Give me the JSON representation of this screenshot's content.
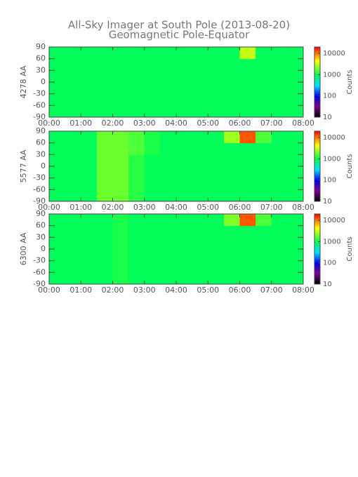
{
  "title": "All-Sky Imager at South Pole (2013-08-20)",
  "subtitle": "Geomagnetic Pole-Equator",
  "chart_data": [
    {
      "type": "heatmap",
      "ylabel": "4278 AA",
      "xbins": [
        0,
        0.5,
        1,
        1.5,
        2,
        2.5,
        3,
        3.5,
        4,
        4.5,
        5,
        5.5,
        6,
        6.5,
        7,
        7.5,
        8
      ],
      "ybins": [
        -90,
        -60,
        -30,
        0,
        30,
        60,
        90
      ],
      "z": [
        [
          900,
          900,
          900,
          900,
          900,
          900,
          900,
          900,
          900,
          900,
          900,
          900,
          900,
          900,
          900,
          900
        ],
        [
          900,
          900,
          900,
          900,
          900,
          900,
          900,
          900,
          900,
          900,
          900,
          900,
          900,
          900,
          900,
          900
        ],
        [
          900,
          900,
          900,
          900,
          900,
          900,
          900,
          900,
          900,
          900,
          900,
          900,
          900,
          900,
          900,
          900
        ],
        [
          900,
          900,
          900,
          900,
          900,
          900,
          900,
          900,
          900,
          900,
          900,
          900,
          900,
          900,
          900,
          900
        ],
        [
          900,
          900,
          900,
          900,
          900,
          900,
          900,
          900,
          900,
          900,
          900,
          900,
          900,
          900,
          900,
          900
        ],
        [
          900,
          900,
          900,
          900,
          900,
          900,
          900,
          900,
          900,
          900,
          900,
          900,
          3000,
          900,
          900,
          900
        ]
      ],
      "xlim": [
        0,
        8
      ],
      "xticks": [
        {
          "value": 0,
          "label": "00:00"
        },
        {
          "value": 1,
          "label": "01:00"
        },
        {
          "value": 2,
          "label": "02:00"
        },
        {
          "value": 3,
          "label": "03:00"
        },
        {
          "value": 4,
          "label": "04:00"
        },
        {
          "value": 5,
          "label": "05:00"
        },
        {
          "value": 6,
          "label": "06:00"
        },
        {
          "value": 7,
          "label": "07:00"
        },
        {
          "value": 8,
          "label": "08:00"
        }
      ],
      "ylim": [
        -90,
        90
      ],
      "yticks": [
        -90,
        -60,
        -30,
        0,
        30,
        60,
        90
      ],
      "zlim": [
        10,
        20000
      ],
      "zticks": [
        10,
        100,
        1000,
        10000
      ],
      "zscale": "log",
      "zlabel": "Counts"
    },
    {
      "type": "heatmap",
      "ylabel": "5577 AA",
      "xbins": [
        0,
        0.5,
        1,
        1.5,
        2,
        2.5,
        3,
        3.5,
        4,
        4.5,
        5,
        5.5,
        6,
        6.5,
        7,
        7.5,
        8
      ],
      "ybins": [
        -90,
        -60,
        -30,
        0,
        30,
        60,
        90
      ],
      "z": [
        [
          900,
          900,
          900,
          1800,
          1800,
          1200,
          900,
          900,
          900,
          900,
          900,
          900,
          900,
          900,
          900,
          900
        ],
        [
          900,
          900,
          900,
          1800,
          1800,
          1200,
          900,
          900,
          900,
          900,
          900,
          900,
          900,
          900,
          900,
          900
        ],
        [
          900,
          900,
          900,
          1800,
          1800,
          1200,
          900,
          900,
          900,
          900,
          900,
          900,
          900,
          900,
          900,
          900
        ],
        [
          900,
          900,
          900,
          1800,
          1800,
          1200,
          900,
          900,
          900,
          900,
          900,
          900,
          900,
          900,
          900,
          900
        ],
        [
          900,
          900,
          900,
          1800,
          1800,
          1500,
          1100,
          900,
          900,
          900,
          900,
          900,
          900,
          900,
          900,
          900
        ],
        [
          900,
          900,
          900,
          1800,
          1800,
          1500,
          1100,
          900,
          900,
          900,
          900,
          2500,
          12000,
          1500,
          900,
          900
        ]
      ],
      "xlim": [
        0,
        8
      ],
      "xticks": [
        {
          "value": 0,
          "label": "00:00"
        },
        {
          "value": 1,
          "label": "01:00"
        },
        {
          "value": 2,
          "label": "02:00"
        },
        {
          "value": 3,
          "label": "03:00"
        },
        {
          "value": 4,
          "label": "04:00"
        },
        {
          "value": 5,
          "label": "05:00"
        },
        {
          "value": 6,
          "label": "06:00"
        },
        {
          "value": 7,
          "label": "07:00"
        },
        {
          "value": 8,
          "label": "08:00"
        }
      ],
      "ylim": [
        -90,
        90
      ],
      "yticks": [
        -90,
        -60,
        -30,
        0,
        30,
        60,
        90
      ],
      "zlim": [
        10,
        20000
      ],
      "zticks": [
        10,
        100,
        1000,
        10000
      ],
      "zscale": "log",
      "zlabel": "Counts"
    },
    {
      "type": "heatmap",
      "ylabel": "6300 AA",
      "xbins": [
        0,
        0.5,
        1,
        1.5,
        2,
        2.5,
        3,
        3.5,
        4,
        4.5,
        5,
        5.5,
        6,
        6.5,
        7,
        7.5,
        8
      ],
      "ybins": [
        -90,
        -60,
        -30,
        0,
        30,
        60,
        90
      ],
      "z": [
        [
          900,
          900,
          900,
          900,
          1100,
          900,
          900,
          900,
          900,
          900,
          900,
          900,
          900,
          900,
          900,
          900
        ],
        [
          900,
          900,
          900,
          900,
          1100,
          900,
          900,
          900,
          900,
          900,
          900,
          900,
          900,
          900,
          900,
          900
        ],
        [
          900,
          900,
          900,
          900,
          1100,
          900,
          900,
          900,
          900,
          900,
          900,
          900,
          900,
          900,
          900,
          900
        ],
        [
          900,
          900,
          900,
          900,
          1100,
          900,
          900,
          900,
          900,
          900,
          900,
          900,
          900,
          900,
          900,
          900
        ],
        [
          900,
          900,
          900,
          900,
          1100,
          900,
          900,
          900,
          900,
          900,
          900,
          900,
          900,
          900,
          900,
          900
        ],
        [
          900,
          900,
          900,
          900,
          1100,
          900,
          900,
          900,
          900,
          900,
          900,
          2000,
          12000,
          1500,
          900,
          900
        ]
      ],
      "xlim": [
        0,
        8
      ],
      "xticks": [
        {
          "value": 0,
          "label": "00:00"
        },
        {
          "value": 1,
          "label": "01:00"
        },
        {
          "value": 2,
          "label": "02:00"
        },
        {
          "value": 3,
          "label": "03:00"
        },
        {
          "value": 4,
          "label": "04:00"
        },
        {
          "value": 5,
          "label": "05:00"
        },
        {
          "value": 6,
          "label": "06:00"
        },
        {
          "value": 7,
          "label": "07:00"
        },
        {
          "value": 8,
          "label": "08:00"
        }
      ],
      "ylim": [
        -90,
        90
      ],
      "yticks": [
        -90,
        -60,
        -30,
        0,
        30,
        60,
        90
      ],
      "zlim": [
        10,
        20000
      ],
      "zticks": [
        10,
        100,
        1000,
        10000
      ],
      "zscale": "log",
      "zlabel": "Counts"
    }
  ]
}
